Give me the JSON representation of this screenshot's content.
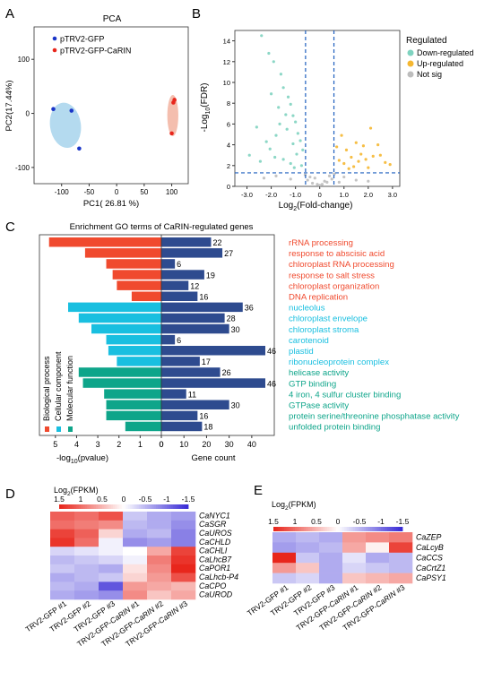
{
  "panels": {
    "A": {
      "letter": "A",
      "title": "PCA",
      "xlabel": "PC1( 26.81 %)",
      "ylabel": "PC2(17.44%)",
      "xticks": [
        -100,
        -50,
        0,
        50,
        100
      ],
      "yticks": [
        100,
        0,
        -100
      ],
      "legend": [
        "pTRV2-GFP",
        "pTRV2-GFP-CaRIN"
      ],
      "colors": {
        "group1": "#1a35c8",
        "group2": "#e8261c",
        "ellipse1": "#a7d3ec",
        "ellipse2": "#f2b3a0"
      }
    },
    "B": {
      "letter": "B",
      "ylabel_prefix": "-Log",
      "ylabel_sub": "10",
      "ylabel_suffix": "(FDR)",
      "xlabel_prefix": "Log",
      "xlabel_sub": "2",
      "xlabel_suffix": "(Fold-change)",
      "xticks": [
        "-3.0",
        "-2.0",
        "-1.0",
        "0",
        "1.0",
        "2.0",
        "3.0"
      ],
      "yticks": [
        "0",
        "2",
        "4",
        "6",
        "8",
        "10",
        "12",
        "14"
      ],
      "legend_title": "Regulated",
      "legend": [
        "Down-regulated",
        "Up-regulated",
        "Not sig"
      ],
      "colors": {
        "down": "#7fd3c0",
        "up": "#f5b731",
        "ns": "#bdbdbd",
        "threshold": "#1f5fbf"
      }
    },
    "C": {
      "letter": "C",
      "title": "Enrichment GO terms of CaRIN-regulated genes",
      "xlabel_left_prefix": "-log",
      "xlabel_left_sub": "10",
      "xlabel_left_suffix": "(pvalue)",
      "xlabel_right": "Gene count",
      "left_ticks": [
        "5",
        "4",
        "3",
        "2",
        "1",
        "0"
      ],
      "right_ticks": [
        "0",
        "10",
        "20",
        "30",
        "40"
      ],
      "category_legend": [
        "Biological process",
        "Cellular component",
        "Molecular function"
      ]
    },
    "D": {
      "letter": "D",
      "scale_title_prefix": "Log",
      "scale_title_sub": "2",
      "scale_title_suffix": "(FPKM)",
      "scale_labels": [
        "1.5",
        "1",
        "0.5",
        "0",
        "-0.5",
        "-1",
        "-1.5"
      ],
      "genes": [
        "CaNYC1",
        "CaSGR",
        "CaUROS",
        "CaCHLD",
        "CaCHLI",
        "CaLhcB7",
        "CaPOR1",
        "CaLhcb-P4",
        "CaCPO",
        "CaUROD"
      ],
      "samples": [
        "TRV2-GFP #1",
        "TRV2-GFP #2",
        "TRV2-GFP #3",
        "TRV2-GFP-CaRIN #1",
        "TRV2-GFP-CaRIN #2",
        "TRV2-GFP-CaRIN #3"
      ],
      "matrix": [
        [
          1.1,
          1.0,
          1.2,
          -0.4,
          -0.6,
          -0.7
        ],
        [
          1.0,
          0.9,
          0.8,
          -0.5,
          -0.6,
          -0.8
        ],
        [
          1.3,
          1.1,
          0.3,
          -0.6,
          -0.5,
          -0.9
        ],
        [
          1.4,
          1.0,
          -0.1,
          -0.8,
          -0.7,
          -0.9
        ],
        [
          -0.3,
          -0.2,
          -0.1,
          0.0,
          0.6,
          1.3
        ],
        [
          -0.5,
          -0.4,
          -0.3,
          -0.1,
          0.9,
          1.4
        ],
        [
          -0.4,
          -0.5,
          -0.6,
          0.2,
          0.8,
          1.5
        ],
        [
          -0.6,
          -0.5,
          -0.4,
          0.3,
          0.7,
          1.2
        ],
        [
          -0.5,
          -0.6,
          -1.2,
          0.7,
          0.6,
          0.5
        ],
        [
          -0.6,
          -0.7,
          -0.8,
          0.8,
          0.4,
          0.6
        ]
      ]
    },
    "E": {
      "letter": "E",
      "scale_title_prefix": "Log",
      "scale_title_sub": "2",
      "scale_title_suffix": "(FPKM)",
      "scale_labels": [
        "1.5",
        "1",
        "0.5",
        "0",
        "-0.5",
        "-1",
        "-1.5"
      ],
      "genes": [
        "CaZEP",
        "CaLcyB",
        "CaCCS",
        "CaCrtZ1",
        "CaPSY1"
      ],
      "samples": [
        "TRV2-GFP #1",
        "TRV2-GFP #2",
        "TRV2-GFP #3",
        "TRV2-GFP-CaRIN #1",
        "TRV2-GFP-CaRIN #2",
        "TRV2-GFP-CaRIN #3"
      ],
      "matrix": [
        [
          -0.6,
          -0.5,
          -0.6,
          0.7,
          0.8,
          0.9
        ],
        [
          -0.7,
          -0.6,
          -0.5,
          0.6,
          0.1,
          1.3
        ],
        [
          1.5,
          -0.4,
          -0.6,
          -0.2,
          -0.6,
          -0.5
        ],
        [
          0.7,
          0.4,
          -0.6,
          -0.3,
          -0.4,
          -0.5
        ],
        [
          -0.4,
          -0.3,
          -0.6,
          0.4,
          0.5,
          0.6
        ]
      ]
    }
  },
  "chart_data": [
    {
      "type": "scatter",
      "title": "PCA",
      "xlabel": "PC1( 26.81 %)",
      "ylabel": "PC2(17.44%)",
      "xlim": [
        -150,
        130
      ],
      "ylim": [
        -130,
        160
      ],
      "series": [
        {
          "name": "pTRV2-GFP",
          "x": [
            -115,
            -82,
            -68
          ],
          "y": [
            8,
            5,
            -65
          ]
        },
        {
          "name": "pTRV2-GFP-CaRIN",
          "x": [
            103,
            105,
            100
          ],
          "y": [
            20,
            25,
            -37
          ]
        }
      ]
    },
    {
      "type": "scatter",
      "xlim": [
        -3.5,
        3.3
      ],
      "ylim": [
        0,
        15
      ],
      "thresholds": {
        "x": [
          -0.585,
          0.585
        ],
        "y": 1.3
      },
      "series": [
        {
          "name": "Down-regulated",
          "x": [
            -2.4,
            -2.1,
            -1.9,
            -1.6,
            -1.5,
            -1.3,
            -1.2,
            -1.1,
            -1.0,
            -0.9,
            -0.8,
            -2.0,
            -1.7,
            -1.4,
            -2.6,
            -1.8,
            -1.1,
            -0.7,
            -2.9,
            -1.5,
            -1.2,
            -2.2,
            -0.95,
            -1.35,
            -1.65,
            -2.05,
            -0.75,
            -1.85,
            -2.45,
            -1.05
          ],
          "y": [
            14.5,
            12.8,
            12.0,
            10.8,
            9.5,
            8.6,
            7.9,
            6.8,
            6.2,
            5.1,
            4.4,
            8.9,
            7.6,
            6.9,
            5.7,
            4.9,
            4.1,
            3.5,
            3.0,
            2.6,
            2.2,
            4.3,
            3.1,
            5.5,
            6.0,
            3.6,
            2.0,
            2.8,
            2.4,
            1.8
          ]
        },
        {
          "name": "Up-regulated",
          "x": [
            0.7,
            0.9,
            1.1,
            1.3,
            1.5,
            1.7,
            1.9,
            2.1,
            2.4,
            2.7,
            1.0,
            1.4,
            1.8,
            2.2,
            0.8,
            1.2,
            1.6,
            2.0,
            2.5,
            2.9
          ],
          "y": [
            3.8,
            4.9,
            3.5,
            2.8,
            4.2,
            3.1,
            2.6,
            5.6,
            4.0,
            2.3,
            2.2,
            1.9,
            3.9,
            2.9,
            2.5,
            1.7,
            2.4,
            1.8,
            3.0,
            2.1
          ]
        },
        {
          "name": "Not sig",
          "x": [
            -0.5,
            -0.3,
            -0.1,
            0.1,
            0.3,
            0.5,
            -0.4,
            0.2,
            0.4,
            -0.2,
            0.0,
            -0.6,
            0.6,
            1.0,
            -1.2,
            1.5,
            -1.8,
            2.0,
            -2.3,
            0.8
          ],
          "y": [
            0.6,
            0.3,
            0.2,
            0.2,
            0.4,
            0.7,
            0.9,
            0.5,
            1.0,
            0.8,
            0.1,
            1.1,
            1.2,
            0.9,
            0.7,
            0.6,
            1.0,
            0.5,
            0.8,
            0.4
          ]
        }
      ]
    },
    {
      "type": "bar",
      "title": "Enrichment GO terms of CaRIN-regulated genes",
      "categories": [
        "rRNA processing",
        "response to abscisic acid",
        "chloroplast RNA processing",
        "response to salt stress",
        "chloroplast organization",
        "DNA replication",
        "nucleolus",
        "chloroplast envelope",
        "chloroplast stroma",
        "carotenoid",
        "plastid",
        "ribonucleoprotein complex",
        "helicase activity",
        "GTP binding",
        "4 iron, 4 sulfur cluster binding",
        "GTPase activity",
        "protein serine/threonine phosphatase activity",
        "unfolded protein binding"
      ],
      "term_class": [
        "BP",
        "BP",
        "BP",
        "BP",
        "BP",
        "BP",
        "CC",
        "CC",
        "CC",
        "CC",
        "CC",
        "CC",
        "MF",
        "MF",
        "MF",
        "MF",
        "MF",
        "MF"
      ],
      "class_colors": {
        "BP": "#f04a2e",
        "CC": "#19bfe0",
        "MF": "#0ea58a"
      },
      "count_color": "#2e4b8f",
      "series": [
        {
          "name": "-log10(pvalue)",
          "values": [
            5.3,
            3.6,
            2.6,
            2.3,
            2.1,
            1.4,
            4.4,
            3.9,
            3.3,
            2.6,
            2.5,
            2.1,
            3.9,
            3.7,
            2.7,
            2.6,
            2.6,
            1.7
          ]
        },
        {
          "name": "Gene count",
          "values": [
            22,
            27,
            6,
            19,
            12,
            16,
            36,
            28,
            30,
            6,
            46,
            17,
            26,
            46,
            11,
            30,
            16,
            18
          ]
        }
      ],
      "xlim_left": [
        0,
        5.5
      ],
      "xlim_right": [
        0,
        46
      ]
    }
  ]
}
